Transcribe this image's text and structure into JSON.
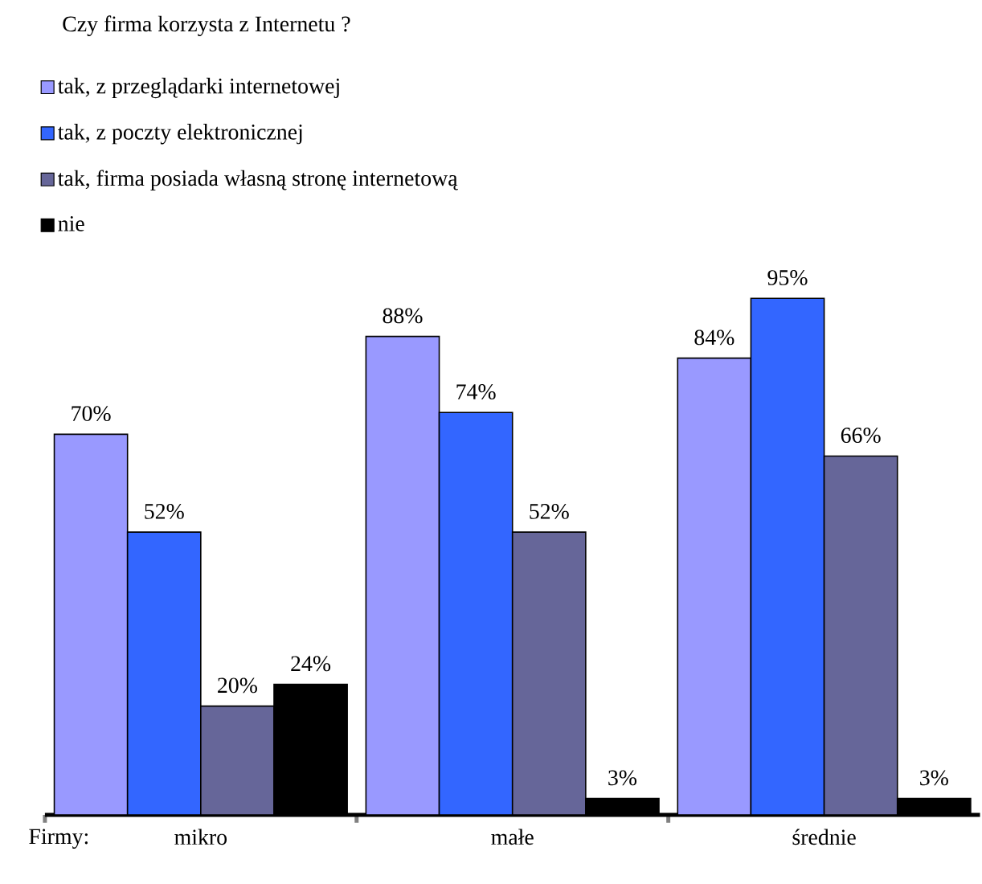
{
  "chart_data": {
    "type": "bar",
    "title": "Czy firma korzysta z Internetu ?",
    "xlabel": "Firmy:",
    "categories": [
      "mikro",
      "małe",
      "średnie"
    ],
    "legend": "top left",
    "series": [
      {
        "name": "tak, z przeglądarki internetowej",
        "color": "#9999ff",
        "values": [
          70,
          88,
          84
        ],
        "value_labels": [
          "70%",
          "88%",
          "84%"
        ]
      },
      {
        "name": "tak, z poczty elektronicznej",
        "color": "#3366ff",
        "values": [
          52,
          74,
          95
        ],
        "value_labels": [
          "52%",
          "74%",
          "95%"
        ]
      },
      {
        "name": "tak, firma posiada własną stronę internetową",
        "color": "#666699",
        "values": [
          20,
          52,
          66
        ],
        "value_labels": [
          "20%",
          "52%",
          "66%"
        ]
      },
      {
        "name": "nie",
        "color": "#000000",
        "values": [
          24,
          3,
          3
        ],
        "value_labels": [
          "24%",
          "3%",
          "3%"
        ]
      }
    ]
  }
}
